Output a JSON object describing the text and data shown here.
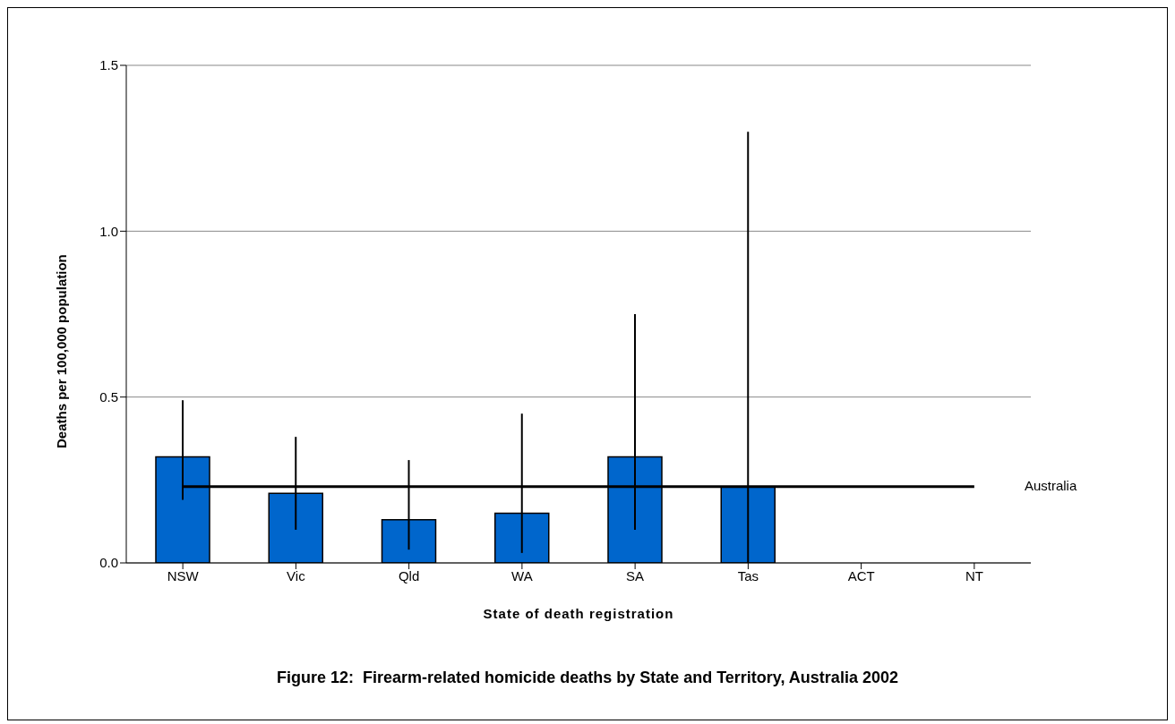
{
  "chart_data": {
    "type": "bar",
    "title": "Figure 12:  Firearm-related homicide deaths by State and Territory, Australia 2002",
    "xlabel": "State of death registration",
    "ylabel": "Deaths per 100,000 population",
    "categories": [
      "NSW",
      "Vic",
      "Qld",
      "WA",
      "SA",
      "Tas",
      "ACT",
      "NT"
    ],
    "series": [
      {
        "color": "#0066cc",
        "values": [
          0.32,
          0.21,
          0.13,
          0.15,
          0.32,
          0.23,
          null,
          null
        ],
        "errors": [
          [
            0.19,
            0.49
          ],
          [
            0.1,
            0.38
          ],
          [
            0.04,
            0.31
          ],
          [
            0.03,
            0.45
          ],
          [
            0.1,
            0.75
          ],
          [
            0,
            1.3
          ],
          null,
          null
        ]
      },
      {
        "type": "line",
        "name": "Australia",
        "color": "#000000",
        "values": [
          0.23,
          0.23,
          0.23,
          0.23,
          0.23,
          0.23,
          0.23,
          0.23
        ]
      }
    ],
    "ylim": [
      0,
      1.5
    ],
    "yticks": [
      {
        "value": 0,
        "label": "0.0"
      },
      {
        "value": 0.5,
        "label": "0.5"
      },
      {
        "value": 1,
        "label": "1.0"
      },
      {
        "value": 1.5,
        "label": "1.5"
      }
    ],
    "grid": "y",
    "legend": false
  }
}
